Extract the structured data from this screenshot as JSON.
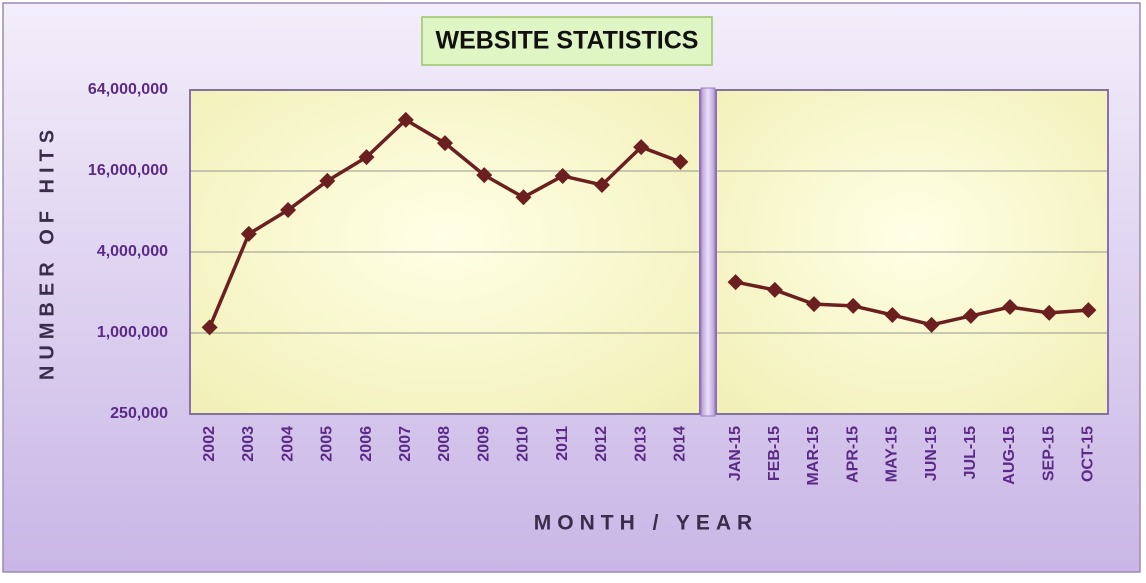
{
  "chart_data": {
    "type": "line",
    "title": "WEBSITE STATISTICS",
    "x_label": "MONTH / YEAR",
    "y_label": "NUMBER OF HITS",
    "categories": [
      "2002",
      "2003",
      "2004",
      "2005",
      "2006",
      "2007",
      "2008",
      "2009",
      "2010",
      "2011",
      "2012",
      "2013",
      "2014",
      "JAN-15",
      "FEB-15",
      "MAR-15",
      "APR-15",
      "MAY-15",
      "JUN-15",
      "JUL-15",
      "AUG-15",
      "SEP-15",
      "OCT-15"
    ],
    "series": [
      {
        "color": "#6b1f1f",
        "values": [
          1100000,
          5450000,
          8200000,
          13500000,
          20300000,
          38400000,
          25800000,
          14900000,
          10200000,
          14700000,
          12600000,
          24100000,
          18700000,
          null,
          null,
          null,
          null,
          null,
          null,
          null,
          null,
          null,
          null
        ]
      },
      {
        "color": "#6b1f1f",
        "values": [
          null,
          null,
          null,
          null,
          null,
          null,
          null,
          null,
          null,
          null,
          null,
          null,
          null,
          2390000,
          2090000,
          1640000,
          1590000,
          1360000,
          1150000,
          1340000,
          1560000,
          1410000,
          1480000
        ]
      }
    ],
    "log_scale": true,
    "ylim": [
      250000,
      64000000
    ],
    "yticks": [
      {
        "value": 250000,
        "label": "250,000"
      },
      {
        "value": 1000000,
        "label": "1,000,000"
      },
      {
        "value": 4000000,
        "label": "4,000,000"
      },
      {
        "value": 16000000,
        "label": "16,000,000"
      },
      {
        "value": 64000000,
        "label": "64,000,000"
      }
    ],
    "grid": true
  }
}
